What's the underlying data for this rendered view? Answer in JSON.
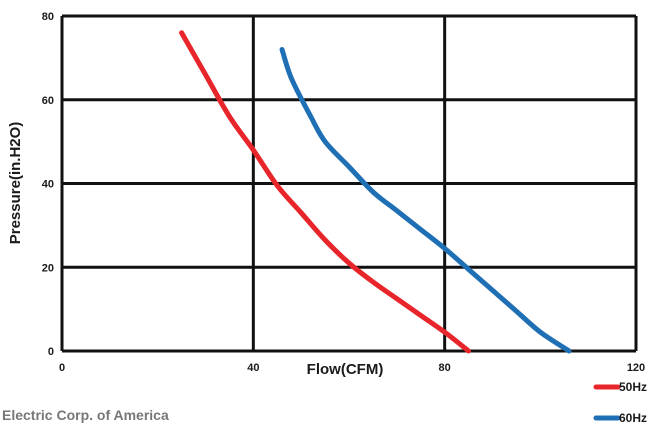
{
  "chart_data": {
    "type": "line",
    "xlabel": "Flow(CFM)",
    "ylabel": "Pressure(in.H2O)",
    "xlim": [
      0,
      120
    ],
    "ylim": [
      0,
      80
    ],
    "xticks": [
      0,
      40,
      80,
      120
    ],
    "yticks": [
      0,
      20,
      40,
      60,
      80
    ],
    "grid": true,
    "legend_position": "bottom-right",
    "series": [
      {
        "name": "50Hz",
        "color": "#e8252a",
        "x": [
          25,
          30,
          35,
          40,
          45,
          50,
          55,
          60,
          65,
          70,
          75,
          80,
          85
        ],
        "y": [
          76,
          66,
          56,
          48,
          39.5,
          33,
          26.5,
          21,
          16.5,
          12.5,
          8.5,
          4.5,
          0
        ]
      },
      {
        "name": "60Hz",
        "color": "#1f6fb5",
        "x": [
          46,
          48,
          52,
          55,
          60,
          65,
          70,
          75,
          80,
          85,
          90,
          95,
          100,
          106
        ],
        "y": [
          72,
          65,
          56,
          50,
          44,
          38,
          33.5,
          29,
          24.5,
          19.5,
          14.5,
          9.5,
          4.5,
          0
        ]
      }
    ]
  },
  "footer": {
    "text": "Electric Corp. of America"
  }
}
